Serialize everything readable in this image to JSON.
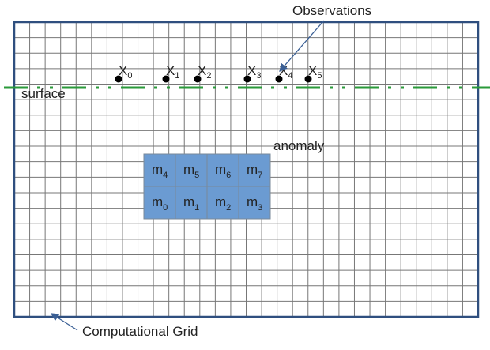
{
  "labels": {
    "observations": "Observations",
    "surface": "surface",
    "anomaly": "anomaly",
    "grid": "Computational Grid"
  },
  "observations": [
    {
      "symbol": "X",
      "index": "0"
    },
    {
      "symbol": "X",
      "index": "1"
    },
    {
      "symbol": "X",
      "index": "2"
    },
    {
      "symbol": "X",
      "index": "3"
    },
    {
      "symbol": "X",
      "index": "4"
    },
    {
      "symbol": "X",
      "index": "5"
    }
  ],
  "cells": [
    {
      "symbol": "m",
      "index": "0"
    },
    {
      "symbol": "m",
      "index": "1"
    },
    {
      "symbol": "m",
      "index": "2"
    },
    {
      "symbol": "m",
      "index": "3"
    },
    {
      "symbol": "m",
      "index": "4"
    },
    {
      "symbol": "m",
      "index": "5"
    },
    {
      "symbol": "m",
      "index": "6"
    },
    {
      "symbol": "m",
      "index": "7"
    }
  ]
}
